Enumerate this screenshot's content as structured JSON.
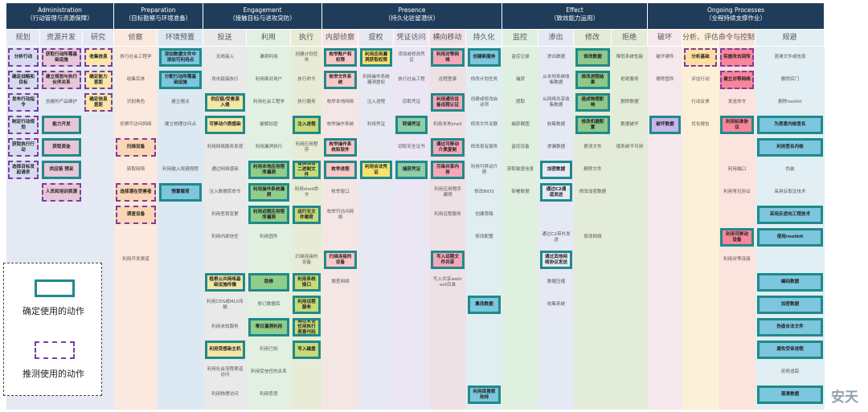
{
  "phases": [
    {
      "name": "Administration",
      "sub": "（行动管理与资源保障）"
    },
    {
      "name": "Preparation",
      "sub": "（目标勘察与环境准备）"
    },
    {
      "name": "Engagement",
      "sub": "（接触目标与进攻突防）"
    },
    {
      "name": "Presence",
      "sub": "（持久化驻留潜伏）"
    },
    {
      "name": "Effect",
      "sub": "（致效能力运用）"
    },
    {
      "name": "Ongoing Processes",
      "sub": "（全程持续支撑作业）"
    }
  ],
  "tactics": [
    "规划",
    "资源开发",
    "研究",
    "侦察",
    "环境预置",
    "投送",
    "利用",
    "执行",
    "内部侦察",
    "提权",
    "凭证访问",
    "横向移动",
    "持久化",
    "监控",
    "渗出",
    "修改",
    "拒绝",
    "破坏",
    "分析、评估、反馈",
    "命令与控制",
    "规避"
  ],
  "colors": {
    "confirmed": "#1f8a8a",
    "inferred": "#7a3ea0",
    "header": "#1f3d5a"
  },
  "cells": [
    [
      "分析行动",
      "确定战略和目标",
      "发布行动指令",
      "制定行动规划",
      "获取执行行动",
      "选择目标发起请求"
    ],
    [
      "获取行动所需基础设施",
      "建立规划与执行伙伴关系",
      "创建的产品维护",
      "能力开发",
      "获取资金",
      "供应链 预采",
      "人员和培训资源"
    ],
    [
      "收集信息",
      "确定能力差距",
      "确定信息差距"
    ],
    [
      "执行社会工程学",
      "收集实体",
      "识别角色",
      "侦察可访问网络",
      "扫描设备",
      "获取网络",
      "选择潜在受害者",
      "调查设备",
      "利用开发渠道"
    ],
    [
      "添加数据文件中添加可利用点",
      "分配行动所需基础设施",
      "建立据点",
      "建立物理访问点",
      "利用输入规避规程",
      "预置载荷"
    ],
    [
      "无线接入",
      "攻击链接执行",
      "供应链/受害源入侵",
      "可移动介质感染",
      "利用网络服务发现",
      "通过网络感染",
      "注入数据库命令",
      "利用恶意变更",
      "利用内部信任",
      "植根公共网络基础设施传输",
      "利用CDS或MLS传输",
      "利用未知服务",
      "利用受感染主机",
      "利用社会流程渠道访问",
      "利用物理访问"
    ],
    [
      "漏洞利用",
      "利用面对用户",
      "利用社会工程学",
      "破解加密",
      "利用漏洞执行",
      "利用本地应用程序漏洞",
      "利用操作系统漏洞",
      "利用远程应用程序漏洞",
      "利用固件",
      "助推",
      "修订数据库",
      "零日漏洞利用",
      "利用已知",
      "利用受信任的关系",
      "利用恶意"
    ],
    [
      "创建计划任务",
      "执行命令",
      "执行服务",
      "注入进程",
      "利用应用程序",
      "替换现有二进制文件",
      "利用shell命令",
      "运行无文件载荷",
      "扫描连接的设备",
      "利用系统接口",
      "利用远程服务",
      "通过受信任用执行恶意代码",
      "写入磁盘"
    ],
    [
      "枚举账户和权限",
      "枚举文件系统",
      "枚举本地网络",
      "枚举操作系统",
      "枚举操作系统和软件",
      "枚举进程",
      "枚举窗口",
      "枚举可访问网络",
      "扫描连接的设备",
      "搜查网络"
    ],
    [
      "利用应用漏洞获取权限",
      "利用操作系统漏洞提权",
      "注入进程",
      "利用凭证",
      "利用合法凭证"
    ],
    [
      "添加或修改凭证",
      "执行社会工程",
      "窃取凭证",
      "转储凭证",
      "窃取安全证书",
      "捕获凭证"
    ],
    [
      "利用对等网络",
      "远程登录",
      "利用通讯设备远程认证",
      "利用本地shell",
      "通过可移动介质复制",
      "污染共享内容",
      "利用应用程序漏洞",
      "利用远程服务",
      "写入远程文件共享",
      "写入共享webroot目录"
    ],
    [
      "创建新服务",
      "修改计划任务",
      "创建或修改启动项",
      "修改文件关联",
      "修改现有服务",
      "利用可移动介质",
      "修改BIOS",
      "创建旁路",
      "修改配置",
      "篡改数据",
      "利用库搜索劫持"
    ],
    [
      "监控记录",
      "捕获",
      "提取",
      "捕获截图",
      "监控设备",
      "获取敏感信息",
      "部署数据"
    ],
    [
      "渗出数据",
      "从本地系统收集数据",
      "从网络共享收集数据",
      "收集数据",
      "渗漏数据",
      "加密数据",
      "通过C2通道发送",
      "通过C2带外发送",
      "通过其他网络协议发送",
      "数据压缩",
      "收集系统"
    ],
    [
      "修改数据",
      "修改进程结果",
      "造成物理影响",
      "修改机器配置",
      "更改文件",
      "删除文件",
      "修改加密数据",
      "修改网络"
    ],
    [
      "降低系统性能",
      "拒绝服务",
      "删除数据",
      "数据破坏",
      "使系统不可用"
    ],
    [
      "破坏硬件",
      "擦除固件",
      "破坏数据",
      "删除组件"
    ],
    [
      "分析基础",
      "评估行动",
      "行动反馈",
      "优化报告"
    ],
    [
      "实施攻击回传",
      "建立对等网络",
      "发送命令",
      "利用标准协议",
      "利用端口",
      "利用常见协议",
      "利用可移动设备",
      "利用对等连接"
    ],
    [
      "混淆文件或信息",
      "删除后门",
      "删除rootkit",
      "修改注册表",
      "为恶意内核签名",
      "利用签名内核",
      "伪装",
      "采用反取证技术",
      "采用反逆向工程技术",
      "使用rootkit",
      "编码数据",
      "加密数据",
      "伪造合法文件",
      "避免受审进程",
      "拒绝追踪",
      "混淆数据"
    ]
  ],
  "legend": {
    "confirmed": "确定使用的动作",
    "inferred": "推测使用的动作"
  },
  "watermark": "安天"
}
